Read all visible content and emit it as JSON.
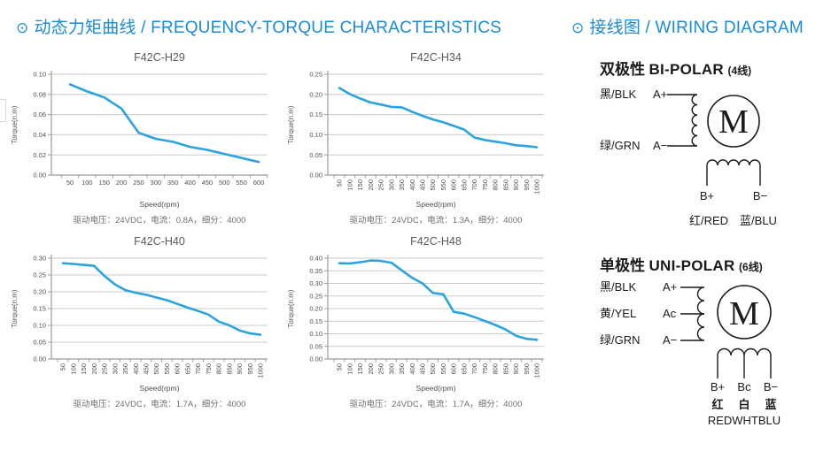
{
  "headers": {
    "left": {
      "icon": "⊙",
      "text": "动态力矩曲线 / FREQUENCY-TORQUE CHARACTERISTICS"
    },
    "right": {
      "icon": "⊙",
      "text": "接线图 / WIRING DIAGRAM"
    }
  },
  "colors": {
    "accent_blue": "#1b8bd5",
    "curve_blue": "#2ca3dd",
    "grid_gray": "#cbcbcb",
    "axis_gray": "#9b9b9b",
    "tick_text": "#4f4f4f",
    "diagram_ink": "#1a1a1a"
  },
  "chart_data": [
    {
      "type": "line",
      "title": "F42C-H29",
      "xlabel": "Speed(rpm)",
      "ylabel": "Torque(n.m)",
      "caption": "驱动电压：24VDC，电流：0.8A，细分：4000",
      "x": [
        50,
        100,
        150,
        200,
        250,
        300,
        350,
        400,
        450,
        500,
        550,
        600
      ],
      "values": [
        0.09,
        0.083,
        0.077,
        0.066,
        0.042,
        0.036,
        0.033,
        0.028,
        0.025,
        0.021,
        0.017,
        0.013
      ],
      "ylim": [
        0,
        0.1
      ],
      "ytick_step": 0.02,
      "x_labels_rotated": false,
      "grid": true,
      "legend": "none"
    },
    {
      "type": "line",
      "title": "F42C-H34",
      "xlabel": "Speed(rpm)",
      "ylabel": "Torque(n.m)",
      "caption": "驱动电压：24VDC，电流：1.3A，细分：4000",
      "x": [
        50,
        100,
        150,
        200,
        250,
        300,
        350,
        400,
        450,
        500,
        550,
        600,
        650,
        700,
        750,
        800,
        850,
        900,
        950,
        1000
      ],
      "values": [
        0.216,
        0.201,
        0.19,
        0.18,
        0.175,
        0.169,
        0.168,
        0.157,
        0.147,
        0.138,
        0.131,
        0.122,
        0.113,
        0.093,
        0.087,
        0.083,
        0.079,
        0.074,
        0.072,
        0.069
      ],
      "ylim": [
        0,
        0.25
      ],
      "ytick_step": 0.05,
      "x_labels_rotated": true,
      "grid": true,
      "legend": "none"
    },
    {
      "type": "line",
      "title": "F42C-H40",
      "xlabel": "Speed(rpm)",
      "ylabel": "Torque(n.m)",
      "caption": "驱动电压：24VDC，电流：1.7A，细分：4000",
      "x": [
        50,
        100,
        150,
        200,
        250,
        300,
        350,
        400,
        450,
        500,
        550,
        600,
        650,
        700,
        750,
        800,
        850,
        900,
        950,
        1000
      ],
      "values": [
        0.285,
        0.283,
        0.28,
        0.277,
        0.247,
        0.222,
        0.205,
        0.197,
        0.191,
        0.183,
        0.175,
        0.164,
        0.153,
        0.143,
        0.132,
        0.111,
        0.1,
        0.085,
        0.076,
        0.072
      ],
      "ylim": [
        0,
        0.3
      ],
      "ytick_step": 0.05,
      "x_labels_rotated": true,
      "grid": true,
      "legend": "none"
    },
    {
      "type": "line",
      "title": "F42C-H48",
      "xlabel": "Speed(rpm)",
      "ylabel": "Torque(n.m)",
      "caption": "驱动电压：24VDC，电流：1.7A，细分：4000",
      "x": [
        50,
        100,
        150,
        200,
        250,
        300,
        350,
        400,
        450,
        500,
        550,
        600,
        650,
        700,
        750,
        800,
        850,
        900,
        950,
        1000
      ],
      "values": [
        0.38,
        0.379,
        0.384,
        0.391,
        0.389,
        0.382,
        0.352,
        0.322,
        0.3,
        0.262,
        0.257,
        0.187,
        0.18,
        0.166,
        0.151,
        0.135,
        0.117,
        0.092,
        0.08,
        0.076
      ],
      "ylim": [
        0,
        0.4
      ],
      "ytick_step": 0.05,
      "x_labels_rotated": true,
      "grid": true,
      "legend": "none"
    }
  ],
  "wiring": {
    "bipolar": {
      "title_zh": "双极性",
      "title_en": "BI-POLAR",
      "wires": "(4线)",
      "motor_label": "M",
      "left_labels": [
        {
          "color_label": "黑/BLK",
          "terminal": "A+"
        },
        {
          "color_label": "绿/GRN",
          "terminal": "A−"
        }
      ],
      "bottom_terminals": [
        "B+",
        "B−"
      ],
      "bottom_labels": [
        "红/RED",
        "蓝/BLU"
      ]
    },
    "unipolar": {
      "title_zh": "单极性",
      "title_en": "UNI-POLAR",
      "wires": "(6线)",
      "motor_label": "M",
      "left_labels": [
        {
          "color_label": "黑/BLK",
          "terminal": "A+"
        },
        {
          "color_label": "黄/YEL",
          "terminal": "Ac"
        },
        {
          "color_label": "绿/GRN",
          "terminal": "A−"
        }
      ],
      "bottom_terminals": [
        "B+",
        "Bc",
        "B−"
      ],
      "bottom_labels": [
        "红",
        "白",
        "蓝"
      ],
      "bottom_caption": "REDWHTBLU"
    }
  }
}
